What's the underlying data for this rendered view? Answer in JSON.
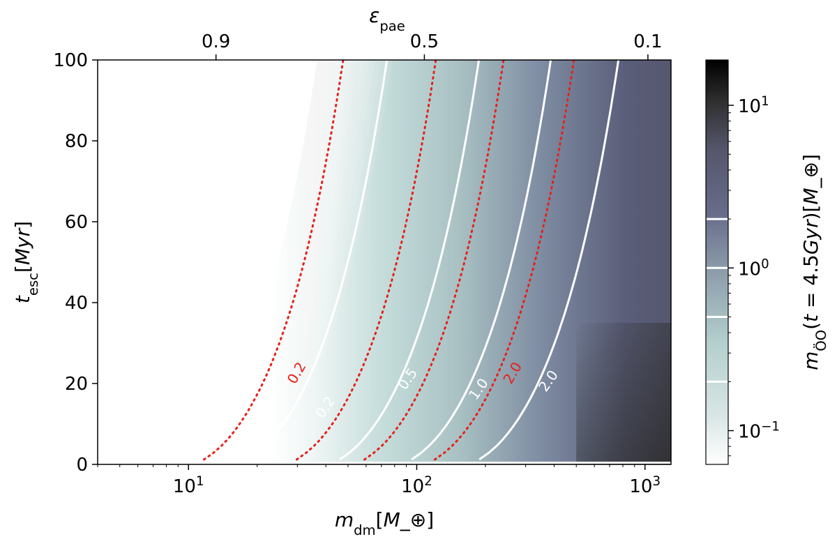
{
  "chart_data": {
    "type": "heatmap",
    "xlabel": "m_dm[M_⊕]",
    "ylabel": "t_esc[Myr]",
    "top_xlabel": "ε_pae",
    "colorbar_label": "m_ÖO(t = 4.5Gyr)[M_⊕]",
    "xscale": "log",
    "xlim": [
      4,
      1300
    ],
    "ylim": [
      0,
      100
    ],
    "x_ticks": [
      10,
      100,
      1000
    ],
    "x_ticklabels": [
      {
        "base": "10",
        "exp": "1"
      },
      {
        "base": "10",
        "exp": "2"
      },
      {
        "base": "10",
        "exp": "3"
      }
    ],
    "y_ticks": [
      0,
      20,
      40,
      60,
      80,
      100
    ],
    "y_ticklabels": [
      "0",
      "20",
      "40",
      "60",
      "80",
      "100"
    ],
    "top_ticks_at_x": [
      13.2,
      108,
      1030
    ],
    "top_ticklabels": [
      "0.9",
      "0.5",
      "0.1"
    ],
    "colorbar": {
      "scale": "log",
      "range": [
        0.062,
        19
      ],
      "ticks": [
        0.1,
        1,
        10
      ],
      "ticklabels": [
        {
          "base": "10",
          "exp": "−1"
        },
        {
          "base": "10",
          "exp": "0"
        },
        {
          "base": "10",
          "exp": "1"
        }
      ],
      "contour_lines": [
        0.2,
        0.5,
        1.0,
        2.0
      ],
      "colors": [
        "#ffffff",
        "#b4d2d0",
        "#7e8f9e",
        "#5e6282",
        "#2a2a2a",
        "#000000"
      ]
    },
    "white_contours": [
      {
        "level": "0.2",
        "x_base": 18.2,
        "label_x": 40,
        "label_y": 14
      },
      {
        "level": "0.5",
        "x_base": 46,
        "label_x": 92,
        "label_y": 21
      },
      {
        "level": "1.0",
        "x_base": 95,
        "label_x": 188,
        "label_y": 18.5
      },
      {
        "level": "2.0",
        "x_base": 188,
        "label_x": 380,
        "label_y": 20.5
      }
    ],
    "red_dotted_contours": [
      {
        "level": "0.2",
        "x_base": 11.7,
        "label_x": 30,
        "label_y": 22.5
      },
      {
        "level": "0.5",
        "x_base": 29.8,
        "label_x": null,
        "label_y": null
      },
      {
        "level": "1.0",
        "x_base": 59,
        "label_x": null,
        "label_y": null
      },
      {
        "level": "2.0",
        "x_base": 120,
        "label_x": 265,
        "label_y": 22.5
      }
    ],
    "field": {
      "white_below_x": 9,
      "saturate_x": 220,
      "dark_x": 1200
    }
  }
}
